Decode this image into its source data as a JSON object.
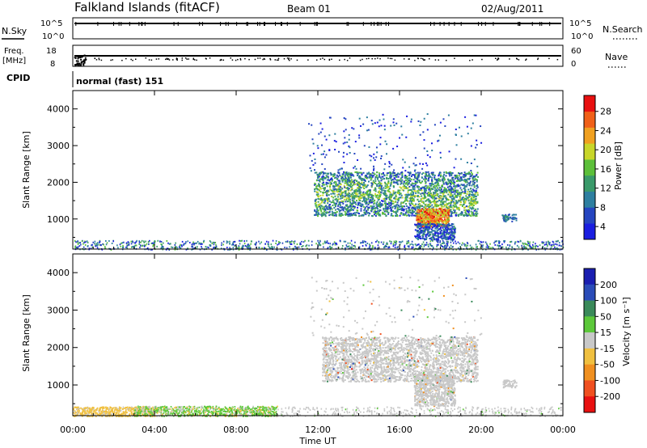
{
  "header": {
    "station": "Falkland Islands (fitACF)",
    "beam": "Beam 01",
    "date": "02/Aug/2011"
  },
  "strips": {
    "nsky_label": "N.Sky",
    "nsky_ticks": [
      "10^5",
      "10^0"
    ],
    "nsearch_label": "N.Search",
    "nsearch_ticks": [
      "10^5",
      "10^0"
    ],
    "freq_label_1": "Freq.",
    "freq_label_2": "[MHz]",
    "freq_ticks": [
      "18",
      "8"
    ],
    "nave_label": "Nave",
    "nave_ticks": [
      "60",
      "0"
    ],
    "cpid_label": "CPID",
    "cpid_value": "normal (fast) 151"
  },
  "power_panel": {
    "ylabel": "Slant Range [km]",
    "yticks": [
      "4000",
      "3000",
      "2000",
      "1000"
    ],
    "colorbar_label": "Power [dB]",
    "colorbar_ticks": [
      "28",
      "24",
      "20",
      "16",
      "12",
      "8",
      "4"
    ]
  },
  "velocity_panel": {
    "ylabel": "Slant Range [km]",
    "yticks": [
      "4000",
      "3000",
      "2000",
      "1000"
    ],
    "colorbar_label": "Velocity [m s⁻¹]",
    "colorbar_ticks": [
      "200",
      "100",
      "50",
      "15",
      "-15",
      "-50",
      "-100",
      "-200"
    ]
  },
  "xaxis": {
    "label": "Time UT",
    "ticks": [
      "00:00",
      "04:00",
      "08:00",
      "12:00",
      "16:00",
      "20:00",
      "00:00"
    ]
  },
  "colors": {
    "power_scale": [
      "#1a1ee0",
      "#2545c0",
      "#2e7fa0",
      "#3a9a6a",
      "#5cbf3a",
      "#c8d62a",
      "#f0a020",
      "#f06018",
      "#e81010"
    ],
    "velocity_scale": [
      "#e81010",
      "#f05020",
      "#f09020",
      "#f0c040",
      "#c8c8c8",
      "#5cc83a",
      "#3a8a5a",
      "#2a4cb8",
      "#1a1eb0"
    ]
  },
  "chart_data": [
    {
      "type": "heatmap",
      "panel": "power",
      "x_range_hours": [
        0,
        24
      ],
      "y_range_km": [
        180,
        4500
      ],
      "color_range_db": [
        0,
        30
      ],
      "features": [
        {
          "x_hours": [
            11.8,
            19.8
          ],
          "y_km": [
            1100,
            2300
          ],
          "typical_db": 10
        },
        {
          "x_hours": [
            16.9,
            18.6
          ],
          "y_km": [
            500,
            1300
          ],
          "typical_db": 26
        },
        {
          "x_hours": [
            0,
            24
          ],
          "y_km": [
            180,
            450
          ],
          "typical_db": 6
        }
      ]
    },
    {
      "type": "heatmap",
      "panel": "velocity",
      "x_range_hours": [
        0,
        24
      ],
      "y_range_km": [
        180,
        4500
      ],
      "color_range_ms": [
        -250,
        250
      ],
      "features": [
        {
          "x_hours": [
            12.2,
            19.8
          ],
          "y_km": [
            1100,
            2300
          ],
          "typical_ms": 0
        },
        {
          "x_hours": [
            3,
            10
          ],
          "y_km": [
            180,
            450
          ],
          "typical_ms": 30
        },
        {
          "x_hours": [
            0,
            4
          ],
          "y_km": [
            180,
            450
          ],
          "typical_ms": -40
        }
      ]
    }
  ]
}
